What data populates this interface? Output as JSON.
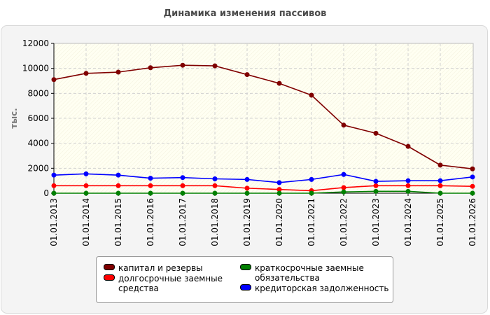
{
  "chart_data": {
    "type": "line",
    "title": "Динамика изменения пассивов",
    "ylabel": "тыс.",
    "xlabel": "",
    "ylim": [
      0,
      12000
    ],
    "yticks": [
      "0",
      "2000",
      "4000",
      "6000",
      "8000",
      "10000",
      "12000"
    ],
    "grid": true,
    "legend_position": "bottom",
    "categories": [
      "01.01.2013",
      "01.01.2014",
      "01.01.2015",
      "01.01.2016",
      "01.01.2017",
      "01.01.2018",
      "01.01.2019",
      "01.01.2020",
      "01.01.2021",
      "01.01.2022",
      "01.01.2023",
      "01.01.2024",
      "01.01.2025",
      "01.01.2026"
    ],
    "series": [
      {
        "name": "капитал и резервы",
        "color": "#800000",
        "values": [
          9100,
          9600,
          9700,
          10050,
          10250,
          10200,
          9500,
          8800,
          7850,
          5450,
          4800,
          3750,
          2250,
          1950
        ]
      },
      {
        "name": "долгосрочные заемные средства",
        "color": "#ff0000",
        "values": [
          600,
          600,
          600,
          600,
          600,
          600,
          400,
          300,
          200,
          450,
          600,
          600,
          600,
          550
        ]
      },
      {
        "name": "краткосрочные заемные обязательства",
        "color": "#008000",
        "values": [
          0,
          0,
          0,
          0,
          0,
          0,
          0,
          0,
          0,
          100,
          150,
          150,
          0,
          0
        ]
      },
      {
        "name": "кредиторская задолженность",
        "color": "#0000ff",
        "values": [
          1450,
          1550,
          1450,
          1200,
          1250,
          1150,
          1100,
          850,
          1100,
          1500,
          950,
          1000,
          1000,
          1300
        ]
      }
    ]
  }
}
